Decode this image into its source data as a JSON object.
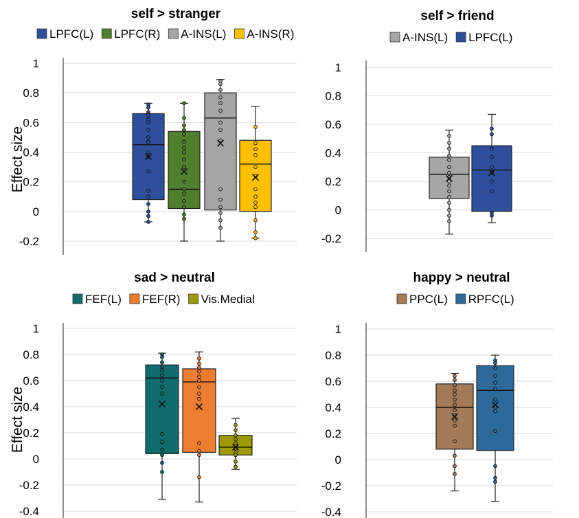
{
  "chart_data": [
    {
      "type": "box",
      "title": "self > stranger",
      "ylabel": "Effect size",
      "ylim": [
        -0.2,
        1
      ],
      "yticks": [
        "1",
        "0.8",
        "0.6",
        "0.4",
        "0.2",
        "0",
        "-0.2"
      ],
      "grid": true,
      "legend_position": "top",
      "series": [
        {
          "name": "LPFC(L)",
          "color": "#2e4f9b",
          "min": -0.07,
          "q1": 0.08,
          "median": 0.45,
          "q3": 0.66,
          "max": 0.73,
          "mean": 0.37,
          "points": [
            0.72,
            0.7,
            0.67,
            0.65,
            0.62,
            0.6,
            0.55,
            0.5,
            0.47,
            0.4,
            0.37,
            0.27,
            0.14,
            0.1,
            0.05,
            0.0,
            -0.03,
            -0.07
          ]
        },
        {
          "name": "LPFC(R)",
          "color": "#4f7f2f",
          "min": -0.2,
          "q1": 0.02,
          "median": 0.15,
          "q3": 0.54,
          "max": 0.73,
          "mean": 0.27,
          "points": [
            0.73,
            0.63,
            0.58,
            0.55,
            0.52,
            0.47,
            0.43,
            0.4,
            0.35,
            0.3,
            0.2,
            0.15,
            0.12,
            0.07,
            0.03,
            -0.02,
            -0.05
          ]
        },
        {
          "name": "A-INS(L)",
          "color": "#a6a6a6",
          "min": -0.2,
          "q1": 0.01,
          "median": 0.63,
          "q3": 0.8,
          "max": 0.89,
          "mean": 0.46,
          "points": [
            0.88,
            0.86,
            0.82,
            0.77,
            0.73,
            0.68,
            0.6,
            0.55,
            0.48,
            0.15,
            0.08,
            0.03,
            -0.01,
            -0.06,
            -0.11
          ]
        },
        {
          "name": "A-INS(R)",
          "color": "#ffc000",
          "min": -0.18,
          "q1": 0.0,
          "median": 0.32,
          "q3": 0.48,
          "max": 0.71,
          "mean": 0.23,
          "points": [
            0.57,
            0.46,
            0.42,
            0.38,
            0.3,
            0.24,
            0.15,
            0.1,
            0.06,
            0.03,
            -0.06,
            -0.14,
            -0.18
          ]
        }
      ]
    },
    {
      "type": "box",
      "title": "self > friend",
      "ylabel": "",
      "ylim": [
        -0.2,
        1
      ],
      "yticks": [
        "1",
        "0.8",
        "0.6",
        "0.4",
        "0.2",
        "0",
        "-0.2"
      ],
      "grid": true,
      "legend_position": "top",
      "series": [
        {
          "name": "A-INS(L)",
          "color": "#a6a6a6",
          "min": -0.17,
          "q1": 0.08,
          "median": 0.25,
          "q3": 0.37,
          "max": 0.56,
          "mean": 0.22,
          "points": [
            0.52,
            0.47,
            0.43,
            0.38,
            0.35,
            0.3,
            0.26,
            0.23,
            0.2,
            0.17,
            0.13,
            0.09,
            0.05,
            0.0,
            -0.04,
            -0.08
          ]
        },
        {
          "name": "LPFC(L)",
          "color": "#2e4f9b",
          "min": -0.09,
          "q1": -0.01,
          "median": 0.28,
          "q3": 0.45,
          "max": 0.67,
          "mean": 0.26,
          "points": [
            0.57,
            0.53,
            0.43,
            0.37,
            0.3,
            0.26,
            0.2,
            0.13,
            -0.02,
            -0.04
          ]
        }
      ]
    },
    {
      "type": "box",
      "title": "sad > neutral",
      "ylabel": "Effect size",
      "ylim": [
        -0.4,
        1
      ],
      "yticks": [
        "1",
        "0.8",
        "0.6",
        "0.4",
        "0.2",
        "0",
        "-0.2",
        "-0.4"
      ],
      "grid": true,
      "legend_position": "top",
      "series": [
        {
          "name": "FEF(L)",
          "color": "#0f6b6e",
          "min": -0.31,
          "q1": 0.04,
          "median": 0.62,
          "q3": 0.72,
          "max": 0.81,
          "mean": 0.42,
          "points": [
            0.8,
            0.78,
            0.74,
            0.71,
            0.68,
            0.64,
            0.6,
            0.55,
            0.5,
            0.19,
            0.13,
            0.07,
            0.03,
            -0.03,
            -0.1
          ]
        },
        {
          "name": "FEF(R)",
          "color": "#ed7d31",
          "min": -0.33,
          "q1": 0.05,
          "median": 0.59,
          "q3": 0.69,
          "max": 0.82,
          "mean": 0.4,
          "points": [
            0.77,
            0.73,
            0.7,
            0.67,
            0.63,
            0.6,
            0.55,
            0.5,
            0.46,
            0.12,
            0.06,
            0.03,
            -0.14
          ]
        },
        {
          "name": "Vis.Medial",
          "color": "#9c9a00",
          "min": -0.08,
          "q1": 0.03,
          "median": 0.09,
          "q3": 0.18,
          "max": 0.31,
          "mean": 0.09,
          "points": [
            0.26,
            0.22,
            0.18,
            0.15,
            0.12,
            0.1,
            0.08,
            0.05,
            0.03,
            -0.02,
            -0.06
          ]
        }
      ]
    },
    {
      "type": "box",
      "title": "happy > neutral",
      "ylabel": "",
      "ylim": [
        -0.4,
        1
      ],
      "yticks": [
        "1",
        "0.8",
        "0.6",
        "0.4",
        "0.2",
        "0",
        "-0.2",
        "-0.4"
      ],
      "grid": true,
      "legend_position": "top",
      "series": [
        {
          "name": "PPC(L)",
          "color": "#a47a58",
          "min": -0.24,
          "q1": 0.08,
          "median": 0.4,
          "q3": 0.58,
          "max": 0.66,
          "mean": 0.33,
          "points": [
            0.64,
            0.61,
            0.57,
            0.53,
            0.5,
            0.46,
            0.42,
            0.38,
            0.34,
            0.3,
            0.26,
            0.14,
            0.03,
            -0.05,
            -0.11
          ]
        },
        {
          "name": "RPFC(L)",
          "color": "#2e6a99",
          "min": -0.32,
          "q1": 0.07,
          "median": 0.53,
          "q3": 0.72,
          "max": 0.8,
          "mean": 0.42,
          "points": [
            0.76,
            0.74,
            0.7,
            0.64,
            0.59,
            0.54,
            0.46,
            0.4,
            0.37,
            0.22,
            -0.05,
            -0.14,
            -0.17
          ]
        }
      ]
    }
  ]
}
